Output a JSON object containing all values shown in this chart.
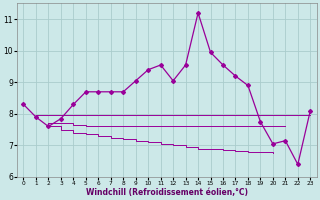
{
  "background_color": "#cce8e8",
  "grid_color": "#aacccc",
  "line_color": "#990099",
  "x_values": [
    0,
    1,
    2,
    3,
    4,
    5,
    6,
    7,
    8,
    9,
    10,
    11,
    12,
    13,
    14,
    15,
    16,
    17,
    18,
    19,
    20,
    21,
    22,
    23
  ],
  "main_line": [
    8.3,
    7.9,
    7.6,
    7.85,
    8.3,
    8.7,
    8.7,
    8.7,
    8.7,
    9.05,
    9.4,
    9.55,
    9.05,
    9.55,
    11.2,
    9.95,
    9.55,
    9.2,
    8.9,
    7.75,
    7.05,
    7.15,
    6.4,
    8.1
  ],
  "flat_line1_x": [
    1,
    2,
    3,
    4,
    5,
    6,
    7,
    8,
    9,
    10,
    11,
    12,
    13,
    14,
    15,
    16,
    17,
    18,
    19,
    20,
    21,
    22,
    23
  ],
  "flat_line1_y": [
    7.95,
    7.95,
    7.95,
    7.95,
    7.95,
    7.95,
    7.95,
    7.95,
    7.95,
    7.95,
    7.95,
    7.95,
    7.95,
    7.95,
    7.95,
    7.95,
    7.95,
    7.95,
    7.95,
    7.95,
    7.95,
    7.95,
    7.95
  ],
  "flat_line2_x": [
    2,
    3,
    4,
    5,
    6,
    7,
    8,
    9,
    10,
    11,
    12,
    13,
    14,
    15,
    16,
    17,
    18,
    19,
    20,
    21
  ],
  "flat_line2_y": [
    7.7,
    7.7,
    7.65,
    7.6,
    7.6,
    7.6,
    7.6,
    7.6,
    7.6,
    7.6,
    7.6,
    7.6,
    7.6,
    7.6,
    7.6,
    7.6,
    7.6,
    7.6,
    7.6,
    7.6
  ],
  "flat_line3_x": [
    2,
    3,
    4,
    5,
    6,
    7,
    8,
    9,
    10,
    11,
    12,
    13,
    14,
    15,
    16,
    17,
    18,
    19,
    20
  ],
  "flat_line3_y": [
    7.6,
    7.5,
    7.4,
    7.35,
    7.3,
    7.25,
    7.2,
    7.15,
    7.1,
    7.05,
    7.0,
    6.95,
    6.9,
    6.88,
    6.85,
    6.82,
    6.8,
    6.78,
    6.75
  ],
  "ylim": [
    6.0,
    11.5
  ],
  "xlim": [
    -0.5,
    23.5
  ],
  "yticks": [
    6,
    7,
    8,
    9,
    10,
    11
  ],
  "xtick_labels": [
    "0",
    "1",
    "2",
    "3",
    "4",
    "5",
    "6",
    "7",
    "8",
    "9",
    "10",
    "11",
    "12",
    "13",
    "14",
    "15",
    "16",
    "17",
    "18",
    "19",
    "20",
    "21",
    "22",
    "23"
  ],
  "xlabel": "Windchill (Refroidissement éolien,°C)",
  "title_color": "#660066"
}
